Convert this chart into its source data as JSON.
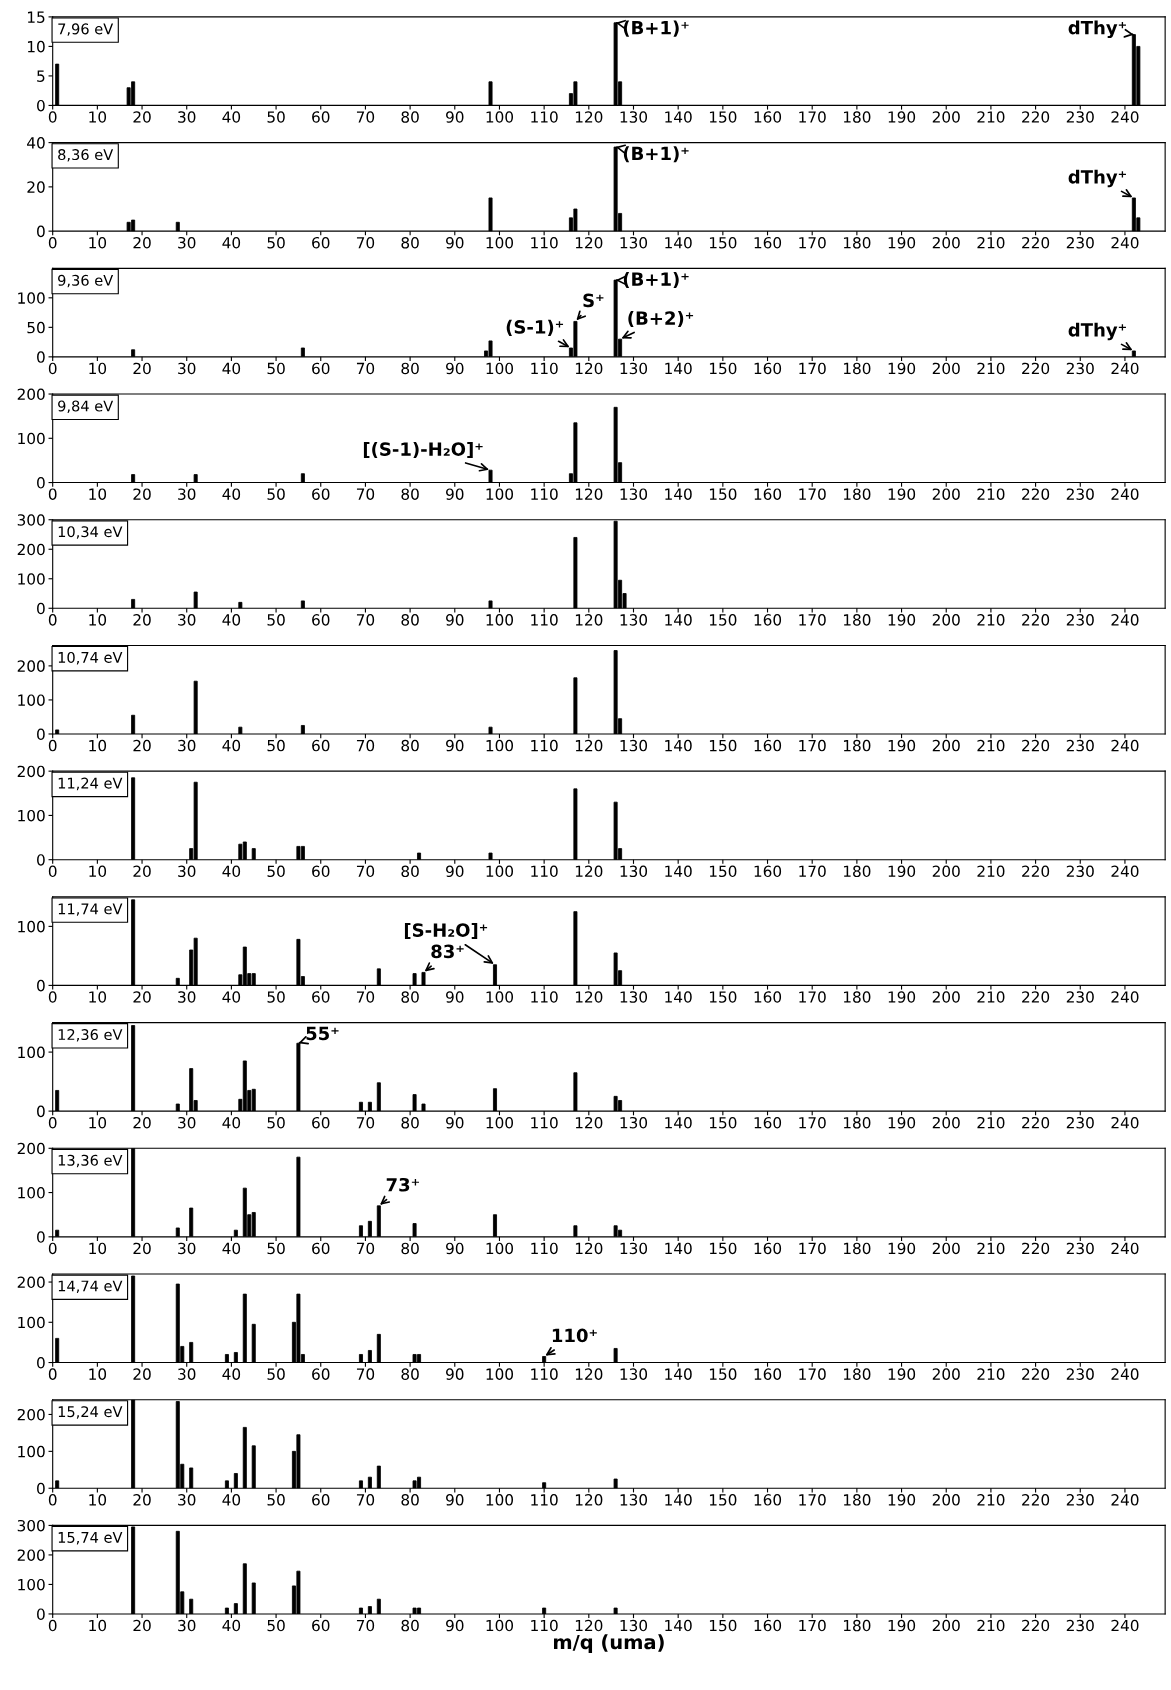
{
  "chart_data": [
    {
      "type": "bar",
      "title": "7,96 eV",
      "x": [
        1,
        17,
        18,
        98,
        116,
        117,
        126,
        127,
        242,
        243
      ],
      "values": [
        7,
        3,
        4,
        4,
        2,
        4,
        14,
        4,
        12,
        10
      ],
      "color": "#000000",
      "xlim": [
        0,
        249
      ],
      "xticks": [
        0,
        10,
        20,
        30,
        40,
        50,
        60,
        70,
        80,
        90,
        100,
        110,
        120,
        130,
        140,
        150,
        160,
        170,
        180,
        190,
        200,
        210,
        220,
        230,
        240
      ],
      "ylim": [
        0,
        15
      ],
      "yticks": [
        0,
        5,
        10,
        15
      ],
      "grid": false,
      "legend": false,
      "annotations": [
        {
          "text": "(B+1)⁺",
          "x": 126,
          "y": 14
        },
        {
          "text": "dThy⁺",
          "x": 242,
          "y": 12
        }
      ]
    },
    {
      "type": "bar",
      "title": "8,36 eV",
      "x": [
        17,
        18,
        28,
        98,
        116,
        117,
        126,
        127,
        242,
        243
      ],
      "values": [
        4,
        5,
        4,
        15,
        6,
        10,
        38,
        8,
        15,
        6
      ],
      "color": "#000000",
      "xlim": [
        0,
        249
      ],
      "xticks": [
        0,
        10,
        20,
        30,
        40,
        50,
        60,
        70,
        80,
        90,
        100,
        110,
        120,
        130,
        140,
        150,
        160,
        170,
        180,
        190,
        200,
        210,
        220,
        230,
        240
      ],
      "ylim": [
        0,
        40
      ],
      "yticks": [
        0,
        20,
        40
      ],
      "grid": false,
      "legend": false,
      "annotations": [
        {
          "text": "(B+1)⁺",
          "x": 126,
          "y": 38
        },
        {
          "text": "dThy⁺",
          "x": 242,
          "y": 15
        }
      ]
    },
    {
      "type": "bar",
      "title": "9,36 eV",
      "x": [
        18,
        56,
        97,
        98,
        116,
        117,
        126,
        127,
        242
      ],
      "values": [
        12,
        15,
        10,
        27,
        15,
        60,
        130,
        30,
        10
      ],
      "color": "#000000",
      "xlim": [
        0,
        249
      ],
      "xticks": [
        0,
        10,
        20,
        30,
        40,
        50,
        60,
        70,
        80,
        90,
        100,
        110,
        120,
        130,
        140,
        150,
        160,
        170,
        180,
        190,
        200,
        210,
        220,
        230,
        240
      ],
      "ylim": [
        0,
        150
      ],
      "yticks": [
        0,
        50,
        100
      ],
      "grid": false,
      "legend": false,
      "annotations": [
        {
          "text": "(S-1)⁺",
          "x": 116,
          "y": 15
        },
        {
          "text": "S⁺",
          "x": 117,
          "y": 60
        },
        {
          "text": "(B+1)⁺",
          "x": 126,
          "y": 130
        },
        {
          "text": "(B+2)⁺",
          "x": 127,
          "y": 30
        },
        {
          "text": "dThy⁺",
          "x": 242,
          "y": 10
        }
      ]
    },
    {
      "type": "bar",
      "title": "9,84 eV",
      "x": [
        18,
        32,
        56,
        98,
        116,
        117,
        126,
        127
      ],
      "values": [
        18,
        18,
        20,
        28,
        20,
        135,
        170,
        45
      ],
      "color": "#000000",
      "xlim": [
        0,
        249
      ],
      "xticks": [
        0,
        10,
        20,
        30,
        40,
        50,
        60,
        70,
        80,
        90,
        100,
        110,
        120,
        130,
        140,
        150,
        160,
        170,
        180,
        190,
        200,
        210,
        220,
        230,
        240
      ],
      "ylim": [
        0,
        200
      ],
      "yticks": [
        0,
        100,
        200
      ],
      "grid": false,
      "legend": false,
      "annotations": [
        {
          "text": "[(S-1)-H₂O]⁺",
          "x": 98,
          "y": 28
        }
      ]
    },
    {
      "type": "bar",
      "title": "10,34 eV",
      "x": [
        18,
        32,
        42,
        56,
        98,
        117,
        126,
        127,
        128
      ],
      "values": [
        30,
        55,
        20,
        25,
        25,
        240,
        295,
        95,
        50
      ],
      "color": "#000000",
      "xlim": [
        0,
        249
      ],
      "xticks": [
        0,
        10,
        20,
        30,
        40,
        50,
        60,
        70,
        80,
        90,
        100,
        110,
        120,
        130,
        140,
        150,
        160,
        170,
        180,
        190,
        200,
        210,
        220,
        230,
        240
      ],
      "ylim": [
        0,
        300
      ],
      "yticks": [
        0,
        100,
        200,
        300
      ],
      "grid": false,
      "legend": false
    },
    {
      "type": "bar",
      "title": "10,74 eV",
      "x": [
        1,
        18,
        32,
        42,
        56,
        98,
        117,
        126,
        127
      ],
      "values": [
        12,
        55,
        155,
        20,
        25,
        20,
        165,
        245,
        45
      ],
      "color": "#000000",
      "xlim": [
        0,
        249
      ],
      "xticks": [
        0,
        10,
        20,
        30,
        40,
        50,
        60,
        70,
        80,
        90,
        100,
        110,
        120,
        130,
        140,
        150,
        160,
        170,
        180,
        190,
        200,
        210,
        220,
        230,
        240
      ],
      "ylim": [
        0,
        260
      ],
      "yticks": [
        0,
        100,
        200
      ],
      "grid": false,
      "legend": false
    },
    {
      "type": "bar",
      "title": "11,24 eV",
      "x": [
        18,
        31,
        32,
        42,
        43,
        45,
        55,
        56,
        82,
        98,
        117,
        126,
        127
      ],
      "values": [
        185,
        25,
        175,
        35,
        40,
        25,
        30,
        30,
        15,
        15,
        160,
        130,
        25
      ],
      "color": "#000000",
      "xlim": [
        0,
        249
      ],
      "xticks": [
        0,
        10,
        20,
        30,
        40,
        50,
        60,
        70,
        80,
        90,
        100,
        110,
        120,
        130,
        140,
        150,
        160,
        170,
        180,
        190,
        200,
        210,
        220,
        230,
        240
      ],
      "ylim": [
        0,
        200
      ],
      "yticks": [
        0,
        100,
        200
      ],
      "grid": false,
      "legend": false
    },
    {
      "type": "bar",
      "title": "11,74 eV",
      "x": [
        18,
        28,
        31,
        32,
        42,
        43,
        44,
        45,
        55,
        56,
        73,
        81,
        83,
        99,
        117,
        126,
        127
      ],
      "values": [
        145,
        12,
        60,
        80,
        18,
        65,
        20,
        20,
        78,
        15,
        28,
        20,
        22,
        35,
        125,
        55,
        25
      ],
      "color": "#000000",
      "xlim": [
        0,
        249
      ],
      "xticks": [
        0,
        10,
        20,
        30,
        40,
        50,
        60,
        70,
        80,
        90,
        100,
        110,
        120,
        130,
        140,
        150,
        160,
        170,
        180,
        190,
        200,
        210,
        220,
        230,
        240
      ],
      "ylim": [
        0,
        150
      ],
      "yticks": [
        0,
        100
      ],
      "grid": false,
      "legend": false,
      "annotations": [
        {
          "text": "83⁺",
          "x": 83,
          "y": 22
        },
        {
          "text": "[S-H₂O]⁺",
          "x": 99,
          "y": 35
        }
      ]
    },
    {
      "type": "bar",
      "title": "12,36 eV",
      "x": [
        1,
        18,
        28,
        31,
        32,
        42,
        43,
        44,
        45,
        55,
        69,
        71,
        73,
        81,
        83,
        99,
        117,
        126,
        127
      ],
      "values": [
        35,
        145,
        12,
        72,
        18,
        20,
        85,
        35,
        37,
        115,
        15,
        15,
        48,
        28,
        12,
        38,
        65,
        25,
        18
      ],
      "color": "#000000",
      "xlim": [
        0,
        249
      ],
      "xticks": [
        0,
        10,
        20,
        30,
        40,
        50,
        60,
        70,
        80,
        90,
        100,
        110,
        120,
        130,
        140,
        150,
        160,
        170,
        180,
        190,
        200,
        210,
        220,
        230,
        240
      ],
      "ylim": [
        0,
        150
      ],
      "yticks": [
        0,
        100
      ],
      "grid": false,
      "legend": false,
      "annotations": [
        {
          "text": "55⁺",
          "x": 55,
          "y": 115
        }
      ]
    },
    {
      "type": "bar",
      "title": "13,36 eV",
      "x": [
        1,
        18,
        28,
        31,
        41,
        43,
        44,
        45,
        55,
        69,
        71,
        73,
        81,
        99,
        117,
        126,
        127
      ],
      "values": [
        15,
        200,
        20,
        65,
        15,
        110,
        50,
        55,
        180,
        25,
        35,
        70,
        30,
        50,
        25,
        25,
        15
      ],
      "color": "#000000",
      "xlim": [
        0,
        249
      ],
      "xticks": [
        0,
        10,
        20,
        30,
        40,
        50,
        60,
        70,
        80,
        90,
        100,
        110,
        120,
        130,
        140,
        150,
        160,
        170,
        180,
        190,
        200,
        210,
        220,
        230,
        240
      ],
      "ylim": [
        0,
        200
      ],
      "yticks": [
        0,
        100,
        200
      ],
      "grid": false,
      "legend": false,
      "annotations": [
        {
          "text": "73⁺",
          "x": 73,
          "y": 70
        }
      ]
    },
    {
      "type": "bar",
      "title": "14,74 eV",
      "x": [
        1,
        18,
        28,
        29,
        31,
        39,
        41,
        43,
        45,
        54,
        55,
        56,
        69,
        71,
        73,
        81,
        82,
        110,
        126
      ],
      "values": [
        60,
        215,
        195,
        40,
        50,
        20,
        25,
        170,
        95,
        100,
        170,
        20,
        20,
        30,
        70,
        20,
        20,
        15,
        35
      ],
      "color": "#000000",
      "xlim": [
        0,
        249
      ],
      "xticks": [
        0,
        10,
        20,
        30,
        40,
        50,
        60,
        70,
        80,
        90,
        100,
        110,
        120,
        130,
        140,
        150,
        160,
        170,
        180,
        190,
        200,
        210,
        220,
        230,
        240
      ],
      "ylim": [
        0,
        220
      ],
      "yticks": [
        0,
        100,
        200
      ],
      "grid": false,
      "legend": false,
      "annotations": [
        {
          "text": "110⁺",
          "x": 110,
          "y": 15
        }
      ]
    },
    {
      "type": "bar",
      "title": "15,24 eV",
      "x": [
        1,
        18,
        28,
        29,
        31,
        39,
        41,
        43,
        45,
        54,
        55,
        69,
        71,
        73,
        81,
        82,
        110,
        126
      ],
      "values": [
        20,
        240,
        235,
        65,
        55,
        20,
        40,
        165,
        115,
        100,
        145,
        20,
        30,
        60,
        20,
        30,
        15,
        25
      ],
      "color": "#000000",
      "xlim": [
        0,
        249
      ],
      "xticks": [
        0,
        10,
        20,
        30,
        40,
        50,
        60,
        70,
        80,
        90,
        100,
        110,
        120,
        130,
        140,
        150,
        160,
        170,
        180,
        190,
        200,
        210,
        220,
        230,
        240
      ],
      "ylim": [
        0,
        240
      ],
      "yticks": [
        0,
        100,
        200
      ],
      "grid": false,
      "legend": false
    },
    {
      "type": "bar",
      "title": "15,74 eV",
      "x": [
        18,
        28,
        29,
        31,
        39,
        41,
        43,
        45,
        54,
        55,
        69,
        71,
        73,
        81,
        82,
        110,
        126
      ],
      "values": [
        295,
        280,
        75,
        50,
        20,
        35,
        170,
        105,
        95,
        145,
        20,
        25,
        50,
        20,
        20,
        20,
        20
      ],
      "color": "#000000",
      "xlim": [
        0,
        249
      ],
      "xticks": [
        0,
        10,
        20,
        30,
        40,
        50,
        60,
        70,
        80,
        90,
        100,
        110,
        120,
        130,
        140,
        150,
        160,
        170,
        180,
        190,
        200,
        210,
        220,
        230,
        240
      ],
      "ylim": [
        0,
        300
      ],
      "yticks": [
        0,
        100,
        200,
        300
      ],
      "grid": false,
      "legend": false,
      "xlabel": "m/q (uma)"
    }
  ]
}
